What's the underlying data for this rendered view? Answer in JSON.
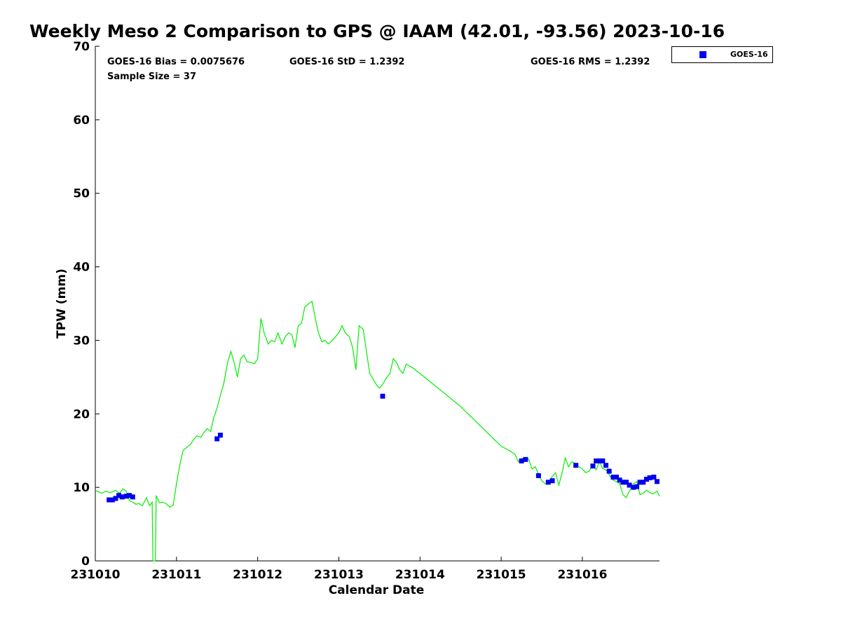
{
  "chart_data": {
    "type": "line",
    "title": "Weekly Meso 2 Comparison to GPS @ IAAM (42.01, -93.56) 2023-10-16",
    "xlabel": "Calendar Date",
    "ylabel": "TPW (mm)",
    "xlim": [
      231010,
      231016.95
    ],
    "ylim": [
      0,
      70
    ],
    "x_ticks": [
      {
        "x": 231010,
        "label": "231010"
      },
      {
        "x": 231011,
        "label": "231011"
      },
      {
        "x": 231012,
        "label": "231012"
      },
      {
        "x": 231013,
        "label": "231013"
      },
      {
        "x": 231014,
        "label": "231014"
      },
      {
        "x": 231015,
        "label": "231015"
      },
      {
        "x": 231016,
        "label": "231016"
      }
    ],
    "y_ticks": [
      0,
      10,
      20,
      30,
      40,
      50,
      60,
      70
    ],
    "grid": false,
    "legend_position": "top-right",
    "stats": {
      "bias": "GOES-16 Bias = 0.0075676",
      "std": "GOES-16 StD = 1.2392",
      "rms": "GOES-16 RMS = 1.2392",
      "sample_size": "Sample Size = 37"
    },
    "colors": {
      "gps": "#00ee00",
      "goes": "#0000ee"
    },
    "series": [
      {
        "kind": "line",
        "color": "#00ee00",
        "x": [
          231010.0,
          231010.04,
          231010.08,
          231010.13,
          231010.17,
          231010.21,
          231010.25,
          231010.3,
          231010.34,
          231010.38,
          231010.42,
          231010.46,
          231010.5,
          231010.54,
          231010.58,
          231010.63,
          231010.67,
          231010.7,
          231010.71,
          231010.74,
          231010.75,
          231010.79,
          231010.83,
          231010.87,
          231010.92,
          231010.96,
          231011.0,
          231011.04,
          231011.08,
          231011.13,
          231011.17,
          231011.21,
          231011.25,
          231011.3,
          231011.34,
          231011.38,
          231011.42,
          231011.46,
          231011.5,
          231011.54,
          231011.58,
          231011.63,
          231011.67,
          231011.71,
          231011.75,
          231011.79,
          231011.83,
          231011.87,
          231011.92,
          231011.96,
          231012.0,
          231012.04,
          231012.08,
          231012.13,
          231012.17,
          231012.21,
          231012.25,
          231012.3,
          231012.34,
          231012.38,
          231012.42,
          231012.46,
          231012.5,
          231012.54,
          231012.58,
          231012.63,
          231012.67,
          231012.71,
          231012.75,
          231012.79,
          231012.83,
          231012.87,
          231012.92,
          231012.96,
          231013.0,
          231013.04,
          231013.08,
          231013.13,
          231013.17,
          231013.21,
          231013.25,
          231013.3,
          231013.34,
          231013.38,
          231013.42,
          231013.46,
          231013.5,
          231013.54,
          231013.58,
          231013.63,
          231013.67,
          231013.71,
          231013.75,
          231013.79,
          231013.83,
          231013.87,
          231013.92,
          231013.96,
          231014.0,
          231014.5,
          231015.0,
          231015.1,
          231015.17,
          231015.21,
          231015.25,
          231015.3,
          231015.34,
          231015.38,
          231015.42,
          231015.46,
          231015.5,
          231015.54,
          231015.58,
          231015.63,
          231015.67,
          231015.71,
          231015.75,
          231015.79,
          231015.83,
          231015.87,
          231015.92,
          231015.96,
          231016.0,
          231016.04,
          231016.08,
          231016.13,
          231016.17,
          231016.21,
          231016.25,
          231016.3,
          231016.34,
          231016.38,
          231016.42,
          231016.46,
          231016.5,
          231016.54,
          231016.58,
          231016.63,
          231016.67,
          231016.71,
          231016.75,
          231016.79,
          231016.83,
          231016.87,
          231016.92,
          231016.95
        ],
        "y": [
          9.6,
          9.4,
          9.2,
          9.5,
          9.3,
          9.4,
          9.6,
          9.2,
          9.8,
          9.5,
          8.2,
          8.0,
          7.7,
          7.8,
          7.5,
          8.6,
          7.5,
          8.0,
          0.0,
          0.0,
          8.9,
          7.9,
          8.0,
          7.8,
          7.3,
          7.6,
          10.5,
          13.0,
          15.0,
          15.5,
          15.8,
          16.5,
          17.0,
          16.8,
          17.5,
          18.0,
          17.6,
          19.5,
          20.8,
          22.5,
          24.0,
          27.0,
          28.5,
          27.0,
          25.0,
          27.5,
          28.0,
          27.1,
          27.0,
          26.8,
          27.5,
          33.0,
          31.0,
          29.5,
          30.0,
          29.8,
          31.0,
          29.5,
          30.5,
          31.0,
          30.8,
          29.0,
          32.0,
          32.3,
          34.5,
          35.0,
          35.3,
          33.0,
          31.0,
          29.8,
          30.0,
          29.5,
          30.0,
          30.5,
          31.0,
          32.0,
          31.0,
          30.5,
          29.0,
          26.0,
          32.0,
          31.5,
          28.5,
          25.5,
          24.8,
          24.0,
          23.5,
          24.0,
          24.8,
          25.5,
          27.5,
          27.0,
          26.0,
          25.5,
          26.8,
          26.5,
          26.2,
          25.8,
          25.5,
          21.0,
          15.6,
          15.0,
          14.5,
          13.5,
          13.9,
          14.0,
          13.8,
          12.5,
          12.8,
          11.8,
          10.9,
          10.5,
          10.6,
          11.5,
          12.0,
          10.3,
          12.0,
          14.0,
          12.8,
          13.5,
          13.2,
          12.8,
          12.5,
          12.0,
          12.2,
          13.0,
          12.4,
          13.5,
          12.6,
          12.3,
          11.5,
          11.0,
          10.8,
          10.5,
          9.0,
          8.6,
          9.5,
          10.5,
          10.8,
          9.0,
          9.2,
          9.6,
          9.3,
          9.1,
          9.5,
          8.8
        ]
      },
      {
        "kind": "scatter",
        "name": "GOES-16",
        "color": "#0000ee",
        "x": [
          231010.17,
          231010.21,
          231010.25,
          231010.29,
          231010.33,
          231010.38,
          231010.42,
          231010.46,
          231011.5,
          231011.54,
          231013.54,
          231015.25,
          231015.3,
          231015.46,
          231015.58,
          231015.63,
          231015.92,
          231016.13,
          231016.17,
          231016.21,
          231016.25,
          231016.29,
          231016.33,
          231016.38,
          231016.42,
          231016.46,
          231016.5,
          231016.54,
          231016.58,
          231016.63,
          231016.67,
          231016.71,
          231016.75,
          231016.79,
          231016.83,
          231016.88,
          231016.92
        ],
        "y": [
          8.3,
          8.3,
          8.5,
          8.9,
          8.7,
          8.8,
          8.9,
          8.7,
          16.6,
          17.1,
          22.4,
          13.6,
          13.8,
          11.6,
          10.7,
          10.9,
          13.0,
          12.9,
          13.6,
          13.6,
          13.6,
          13.0,
          12.2,
          11.4,
          11.4,
          11.0,
          10.7,
          10.7,
          10.3,
          10.0,
          10.1,
          10.7,
          10.7,
          11.1,
          11.3,
          11.4,
          10.8
        ]
      }
    ]
  }
}
